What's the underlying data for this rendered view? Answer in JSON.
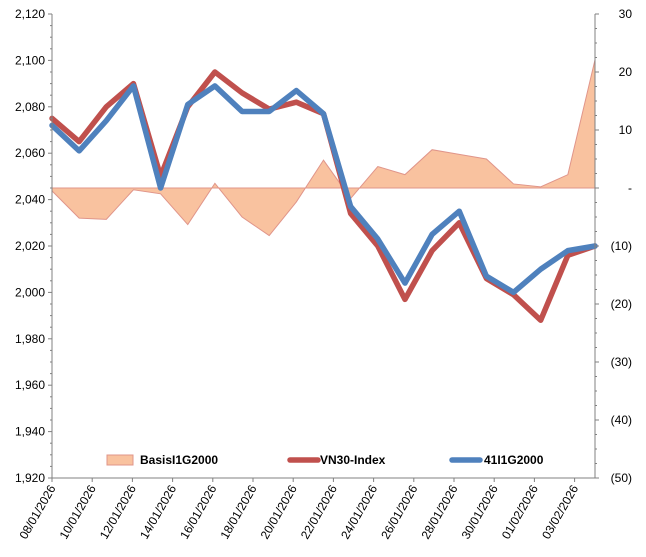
{
  "chart_data": {
    "type": "line",
    "title": "",
    "xlabel": "",
    "ylabel": "",
    "grid": false,
    "legend_placement": "bottom",
    "x_tick_labels": [
      "08/01/2026",
      "10/01/2026",
      "12/01/2026",
      "14/01/2026",
      "16/01/2026",
      "18/01/2026",
      "20/01/2026",
      "22/01/2026",
      "24/01/2026",
      "26/01/2026",
      "28/01/2026",
      "30/01/2026",
      "01/02/2026",
      "03/02/2026"
    ],
    "left_axis": {
      "min": 1920,
      "max": 2120,
      "step": 20,
      "tick_labels": [
        "1,920",
        "1,940",
        "1,960",
        "1,980",
        "2,000",
        "2,020",
        "2,040",
        "2,060",
        "2,080",
        "2,100",
        "2,120"
      ]
    },
    "right_axis": {
      "min": -50,
      "max": 30,
      "step": 10,
      "tick_labels": [
        "(50)",
        "(40)",
        "(30)",
        "(20)",
        "(10)",
        "-",
        "10",
        "20",
        "30"
      ]
    },
    "x": [
      "08/01/2026",
      "09/01/2026",
      "12/01/2026",
      "13/01/2026",
      "14/01/2026",
      "15/01/2026",
      "16/01/2026",
      "19/01/2026",
      "20/01/2026",
      "21/01/2026",
      "22/01/2026",
      "23/01/2026",
      "26/01/2026",
      "27/01/2026",
      "28/01/2026",
      "29/01/2026",
      "30/01/2026",
      "02/02/2026",
      "03/02/2026",
      "04/02/2026",
      "05/02/2026"
    ],
    "series": [
      {
        "name": "BasisI1G2000",
        "type": "area",
        "axis": "right",
        "color": "#f9c29f",
        "edge_color": "#e0958a",
        "values": [
          -0.5,
          -5.2,
          -5.4,
          -0.3,
          -1.0,
          -6.3,
          0.8,
          -5.0,
          -8.2,
          -2.4,
          4.8,
          -1.8,
          3.7,
          2.3,
          6.6,
          5.8,
          5.0,
          0.7,
          0.2,
          2.3,
          22.1
        ]
      },
      {
        "name": "VN30-Index",
        "type": "line",
        "axis": "left",
        "color": "#c0504d",
        "values": [
          2075,
          2065,
          2080,
          2090,
          2050,
          2080,
          2095,
          2086,
          2079,
          2082,
          2077,
          2034,
          2020,
          1997,
          2018,
          2030,
          2006,
          1999,
          1988,
          2016,
          2020
        ]
      },
      {
        "name": "41I1G2000",
        "type": "line",
        "axis": "left",
        "color": "#4f81bd",
        "values": [
          2072,
          2061,
          2074,
          2089,
          2045,
          2081,
          2089,
          2078,
          2078,
          2087,
          2077,
          2037,
          2023,
          2004,
          2025,
          2035,
          2007,
          2000,
          2010,
          2018,
          2020
        ]
      }
    ]
  }
}
